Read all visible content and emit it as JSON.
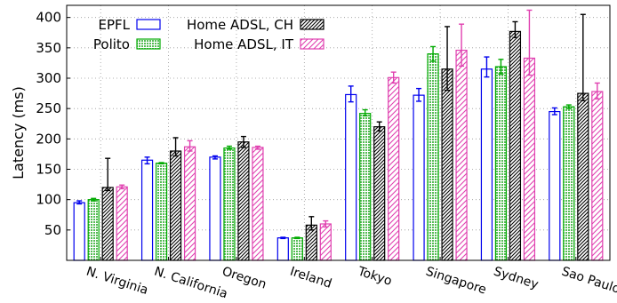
{
  "chart_data": {
    "type": "bar",
    "title": "",
    "xlabel": "",
    "ylabel": "Latency (ms)",
    "ylim": [
      0,
      420
    ],
    "yticks": [
      50,
      100,
      150,
      200,
      250,
      300,
      350,
      400
    ],
    "grid": true,
    "legend_position": "top-left",
    "categories": [
      "N. Virginia",
      "N. California",
      "Oregon",
      "Ireland",
      "Tokyo",
      "Singapore",
      "Sydney",
      "Sao Paulo"
    ],
    "series": [
      {
        "name": "EPFL",
        "color": "#0000ee",
        "pattern": "hollow",
        "values": [
          95,
          165,
          170,
          37,
          273,
          272,
          315,
          245
        ],
        "errors": [
          [
            93,
            98
          ],
          [
            159,
            170
          ],
          [
            167,
            172
          ],
          [
            36,
            38
          ],
          [
            261,
            287
          ],
          [
            262,
            283
          ],
          [
            302,
            335
          ],
          [
            240,
            251
          ]
        ]
      },
      {
        "name": "Polito",
        "color": "#00aa00",
        "pattern": "dots",
        "values": [
          100,
          160,
          185,
          37,
          242,
          340,
          319,
          253
        ],
        "errors": [
          [
            98,
            102
          ],
          [
            159,
            161
          ],
          [
            183,
            188
          ],
          [
            36,
            38
          ],
          [
            238,
            248
          ],
          [
            328,
            352
          ],
          [
            307,
            331
          ],
          [
            250,
            256
          ]
        ]
      },
      {
        "name": "Home ADSL, CH",
        "color": "#000000",
        "pattern": "dense-hatch",
        "values": [
          120,
          180,
          195,
          58,
          220,
          315,
          377,
          275
        ],
        "errors": [
          [
            115,
            168
          ],
          [
            172,
            202
          ],
          [
            186,
            204
          ],
          [
            50,
            72
          ],
          [
            213,
            228
          ],
          [
            280,
            385
          ],
          [
            367,
            393
          ],
          [
            263,
            405
          ]
        ]
      },
      {
        "name": "Home ADSL, IT",
        "color": "#e040b0",
        "pattern": "hatch",
        "values": [
          121,
          187,
          186,
          60,
          301,
          346,
          333,
          278
        ],
        "errors": [
          [
            118,
            124
          ],
          [
            180,
            197
          ],
          [
            183,
            188
          ],
          [
            55,
            65
          ],
          [
            292,
            310
          ],
          [
            320,
            389
          ],
          [
            305,
            412
          ],
          [
            266,
            292
          ]
        ]
      }
    ]
  }
}
